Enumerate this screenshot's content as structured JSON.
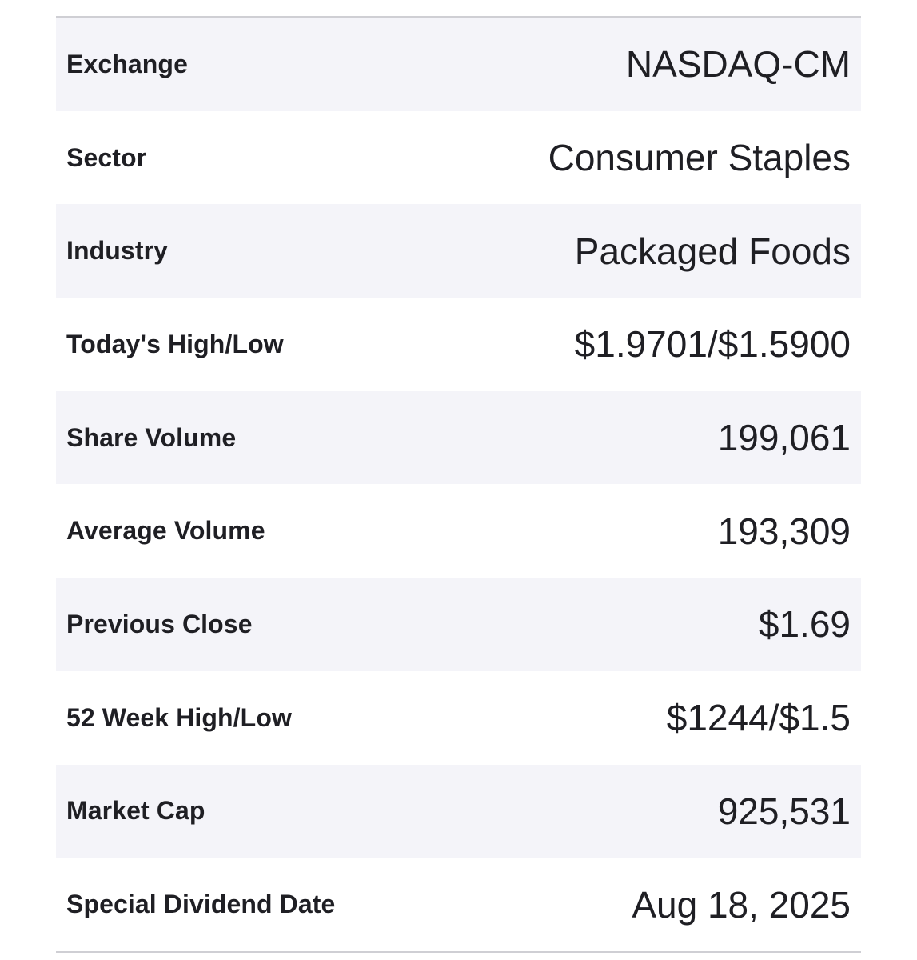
{
  "rows": [
    {
      "label": "Exchange",
      "value": "NASDAQ-CM"
    },
    {
      "label": "Sector",
      "value": "Consumer Staples"
    },
    {
      "label": "Industry",
      "value": "Packaged Foods"
    },
    {
      "label": "Today's High/Low",
      "value": "$1.9701/$1.5900"
    },
    {
      "label": "Share Volume",
      "value": "199,061"
    },
    {
      "label": "Average Volume",
      "value": "193,309"
    },
    {
      "label": "Previous Close",
      "value": "$1.69"
    },
    {
      "label": "52 Week High/Low",
      "value": "$1244/$1.5"
    },
    {
      "label": "Market Cap",
      "value": "925,531"
    },
    {
      "label": "Special Dividend Date",
      "value": "Aug 18, 2025"
    }
  ],
  "colors": {
    "stripe": "#f4f4f9",
    "background": "#ffffff",
    "text": "#1f1f24",
    "border": "#cfcfd4"
  }
}
